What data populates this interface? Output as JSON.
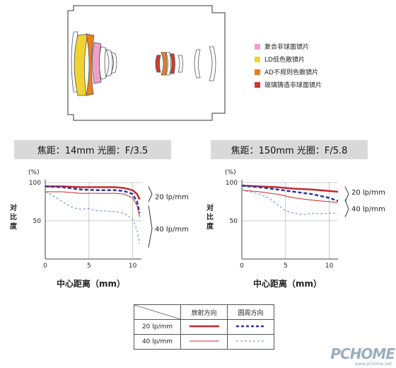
{
  "lens_legend": [
    {
      "label": "复合非球面镜片",
      "color": "#f0a0c8"
    },
    {
      "label": "LD低色散镜片",
      "color": "#f2d230"
    },
    {
      "label": "AD不规则色散镜片",
      "color": "#e8801e"
    },
    {
      "label": "玻璃铸造非球面镜片",
      "color": "#d13a2c"
    }
  ],
  "banners": {
    "left": "焦距：14mm  光圈：F/3.5",
    "right": "焦距：150mm  光圈：F/5.8"
  },
  "y_axis_label": "对比度",
  "x_axis_label": "中心距离（mm）",
  "line_labels": {
    "lp20": "20 lp/mm",
    "lp40": "40 lp/mm"
  },
  "colors": {
    "red": "#c8282d",
    "blue": "#2436a8",
    "light_red": "#c8282d",
    "light_blue": "#5a8ad0"
  },
  "legend_table": {
    "header_sagittal": "放射方向",
    "header_meridional": "圆周方向",
    "row1": "20 lp/mm",
    "row2": "40 lp/mm"
  },
  "watermark": "PCHOME",
  "watermark_sub": "www.pchome.net",
  "chart_data": [
    {
      "type": "line",
      "title": "焦距：14mm  光圈：F/3.5",
      "xlabel": "中心距离（mm）",
      "ylabel": "对比度",
      "y_unit": "(%)",
      "xlim": [
        0,
        11
      ],
      "ylim": [
        0,
        100
      ],
      "x_ticks": [
        0,
        5,
        10
      ],
      "y_ticks": [
        50,
        100
      ],
      "series": [
        {
          "name": "20 lp/mm 放射方向",
          "style": "thick-solid",
          "x": [
            0,
            2,
            4,
            6,
            8,
            9,
            10,
            10.5,
            10.8
          ],
          "y": [
            95,
            95,
            94,
            94,
            94,
            93,
            90,
            85,
            78
          ]
        },
        {
          "name": "20 lp/mm 圆周方向",
          "style": "thick-dashed",
          "x": [
            0,
            2,
            4,
            6,
            8,
            9,
            10,
            10.5,
            10.8
          ],
          "y": [
            95,
            94,
            91,
            90,
            90,
            89,
            85,
            75,
            60
          ]
        },
        {
          "name": "40 lp/mm 放射方向",
          "style": "thin-solid",
          "x": [
            0,
            2,
            4,
            6,
            8,
            9,
            10,
            10.5,
            10.8
          ],
          "y": [
            88,
            88,
            86,
            86,
            86,
            85,
            80,
            70,
            55
          ]
        },
        {
          "name": "40 lp/mm 圆周方向",
          "style": "thin-dashed",
          "x": [
            0,
            1,
            2,
            3,
            4,
            5,
            6,
            7,
            8,
            9,
            10,
            10.5,
            10.8
          ],
          "y": [
            88,
            82,
            75,
            68,
            65,
            66,
            63,
            63,
            62,
            60,
            52,
            38,
            20
          ]
        }
      ]
    },
    {
      "type": "line",
      "title": "焦距：150mm  光圈：F/5.8",
      "xlabel": "中心距离（mm）",
      "ylabel": "对比度",
      "y_unit": "(%)",
      "xlim": [
        0,
        11
      ],
      "ylim": [
        0,
        100
      ],
      "x_ticks": [
        0,
        5,
        10
      ],
      "y_ticks": [
        50,
        100
      ],
      "series": [
        {
          "name": "20 lp/mm 放射方向",
          "style": "thick-solid",
          "x": [
            0,
            2,
            4,
            6,
            8,
            10,
            11
          ],
          "y": [
            96,
            95,
            94,
            92,
            91,
            89,
            88
          ]
        },
        {
          "name": "20 lp/mm 圆周方向",
          "style": "thick-dashed",
          "x": [
            0,
            2,
            4,
            6,
            8,
            10,
            11
          ],
          "y": [
            96,
            94,
            91,
            88,
            85,
            80,
            76
          ]
        },
        {
          "name": "40 lp/mm 放射方向",
          "style": "thin-solid",
          "x": [
            0,
            2,
            4,
            6,
            8,
            10,
            11
          ],
          "y": [
            90,
            88,
            85,
            80,
            77,
            75,
            74
          ]
        },
        {
          "name": "40 lp/mm 圆周方向",
          "style": "thin-dashed",
          "x": [
            0,
            1,
            2,
            3,
            4,
            5,
            6,
            7,
            8,
            9,
            10,
            11
          ],
          "y": [
            90,
            88,
            85,
            80,
            72,
            63,
            60,
            58,
            60,
            59,
            60,
            60
          ]
        }
      ]
    }
  ]
}
